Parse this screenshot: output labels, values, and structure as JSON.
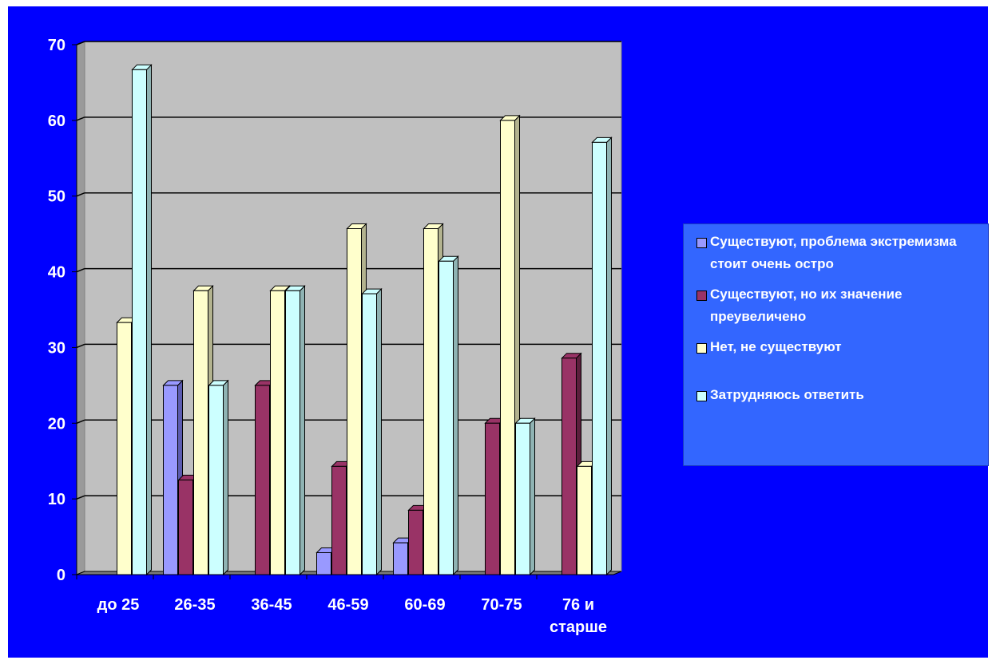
{
  "chart_data": {
    "type": "bar",
    "categories": [
      "до 25",
      "26-35",
      "36-45",
      "46-59",
      "60-69",
      "70-75",
      "76 и старше"
    ],
    "series": [
      {
        "name": "Существуют, проблема экстремизма стоит очень остро",
        "values": [
          0,
          25,
          0,
          2.9,
          4.2,
          0,
          0
        ]
      },
      {
        "name": "Существуют, но их значение преувеличено",
        "values": [
          0,
          12.5,
          25,
          14.3,
          8.5,
          20,
          28.6
        ]
      },
      {
        "name": "Нет, не существуют",
        "values": [
          33.3,
          37.5,
          37.5,
          45.7,
          45.7,
          60,
          14.3
        ]
      },
      {
        "name": "Затрудняюсь ответить",
        "values": [
          66.7,
          25,
          37.5,
          37.1,
          41.4,
          20,
          57.1
        ]
      }
    ],
    "yticks": [
      "0",
      "10",
      "20",
      "30",
      "40",
      "50",
      "60",
      "70"
    ],
    "ylim": [
      0,
      70
    ],
    "grid": true,
    "legend_position": "right",
    "title": "",
    "xlabel": "",
    "ylabel": "",
    "colors": {
      "series_front": [
        "#9999ff",
        "#993366",
        "#ffffcc",
        "#ccffff"
      ],
      "series_side": [
        "#5c5cb0",
        "#5c1f3d",
        "#b3b38f",
        "#8fb3b3"
      ],
      "plot_background": "#c0c0c0",
      "chart_background": "#0000ff",
      "legend_background": "#3366ff"
    }
  }
}
